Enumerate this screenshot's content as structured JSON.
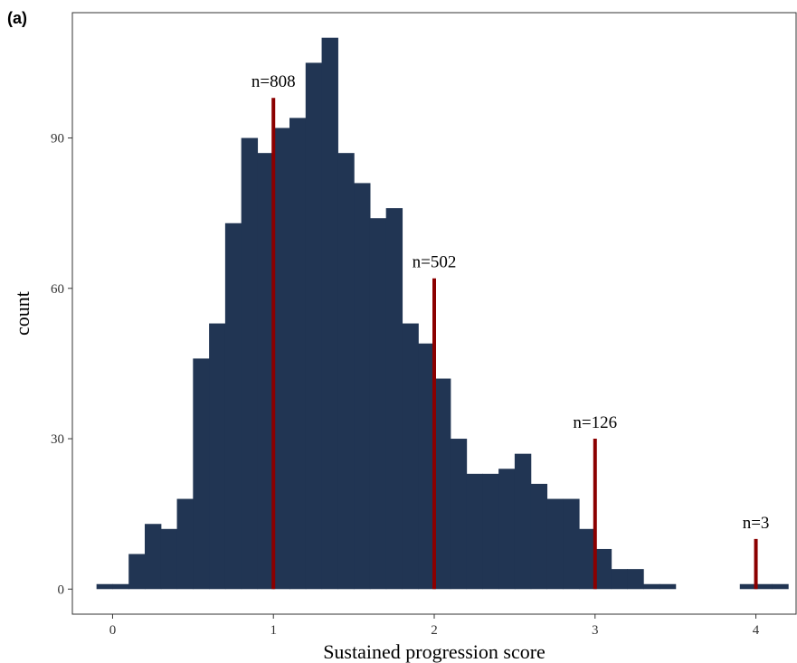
{
  "panel_label": "(a)",
  "chart_data": {
    "type": "bar",
    "xlabel": "Sustained progression score",
    "ylabel": "count",
    "xlim": [
      -0.25,
      4.25
    ],
    "ylim": [
      -5,
      115
    ],
    "x_ticks": [
      0,
      1,
      2,
      3,
      4
    ],
    "x_tick_labels": [
      "0",
      "1",
      "2",
      "3",
      "4"
    ],
    "y_ticks": [
      0,
      30,
      60,
      90
    ],
    "y_tick_labels": [
      "0",
      "30",
      "60",
      "90"
    ],
    "grid": false,
    "bin_width": 0.1,
    "bins_x": [
      -0.05,
      0.05,
      0.15,
      0.25,
      0.35,
      0.45,
      0.55,
      0.65,
      0.75,
      0.85,
      0.95,
      1.05,
      1.15,
      1.25,
      1.35,
      1.45,
      1.55,
      1.65,
      1.75,
      1.85,
      1.95,
      2.05,
      2.15,
      2.25,
      2.35,
      2.45,
      2.55,
      2.65,
      2.75,
      2.85,
      2.95,
      3.05,
      3.15,
      3.25,
      3.35,
      3.45,
      3.55,
      3.65,
      3.75,
      3.85,
      3.95,
      4.05,
      4.15
    ],
    "bin_counts": [
      1,
      1,
      7,
      13,
      12,
      18,
      46,
      53,
      73,
      90,
      87,
      92,
      94,
      105,
      110,
      87,
      81,
      74,
      76,
      53,
      49,
      42,
      30,
      23,
      23,
      24,
      27,
      21,
      18,
      18,
      12,
      8,
      4,
      4,
      1,
      1,
      0,
      0,
      0,
      0,
      1,
      1,
      1
    ],
    "fill_color": "#213553",
    "markers": [
      {
        "x": 1,
        "height": 98,
        "label": "n=808"
      },
      {
        "x": 2,
        "height": 62,
        "label": "n=502"
      },
      {
        "x": 3,
        "height": 30,
        "label": "n=126"
      },
      {
        "x": 4,
        "height": 10,
        "label": "n=3"
      }
    ],
    "marker_color": "#8b0000"
  }
}
